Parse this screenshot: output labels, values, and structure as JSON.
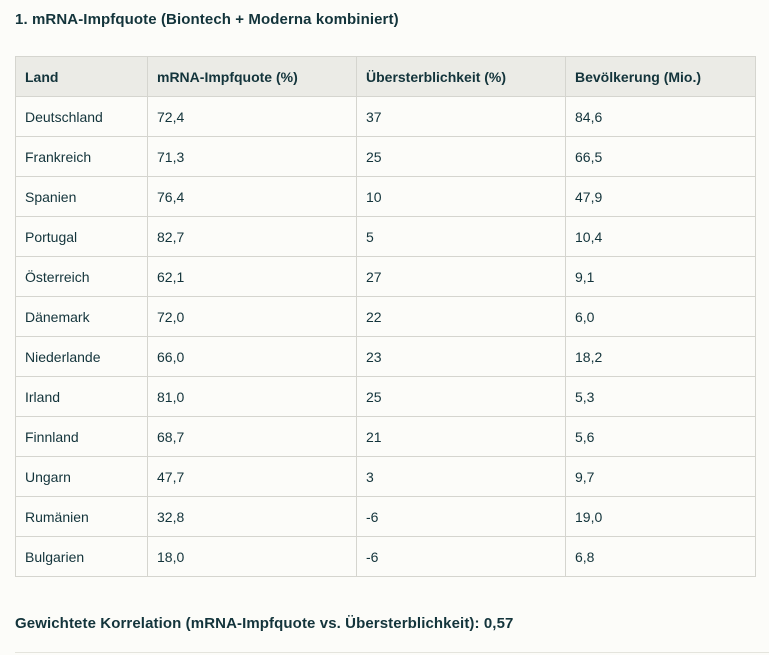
{
  "page": {
    "title": "1. mRNA-Impfquote (Biontech + Moderna kombiniert)",
    "footer": "Gewichtete Korrelation (mRNA-Impfquote vs. Übersterblichkeit): 0,57"
  },
  "colors": {
    "background": "#fcfcf9",
    "text": "#13343b",
    "table_header_bg": "#ebebe6",
    "table_border": "#d5d5cf",
    "bottom_divider": "#e4e4dd"
  },
  "chart_data": {
    "type": "table",
    "title": "1. mRNA-Impfquote (Biontech + Moderna kombiniert)",
    "columns": [
      "Land",
      "mRNA-Impfquote (%)",
      "Übersterblichkeit (%)",
      "Bevölkerung (Mio.)"
    ],
    "rows": [
      [
        "Deutschland",
        "72,4",
        "37",
        "84,6"
      ],
      [
        "Frankreich",
        "71,3",
        "25",
        "66,5"
      ],
      [
        "Spanien",
        "76,4",
        "10",
        "47,9"
      ],
      [
        "Portugal",
        "82,7",
        "5",
        "10,4"
      ],
      [
        "Österreich",
        "62,1",
        "27",
        "9,1"
      ],
      [
        "Dänemark",
        "72,0",
        "22",
        "6,0"
      ],
      [
        "Niederlande",
        "66,0",
        "23",
        "18,2"
      ],
      [
        "Irland",
        "81,0",
        "25",
        "5,3"
      ],
      [
        "Finnland",
        "68,7",
        "21",
        "5,6"
      ],
      [
        "Ungarn",
        "47,7",
        "3",
        "9,7"
      ],
      [
        "Rumänien",
        "32,8",
        "-6",
        "19,0"
      ],
      [
        "Bulgarien",
        "18,0",
        "-6",
        "6,8"
      ]
    ],
    "footnote": "Gewichtete Korrelation (mRNA-Impfquote vs. Übersterblichkeit): 0,57",
    "correlation_value": "0,57"
  }
}
